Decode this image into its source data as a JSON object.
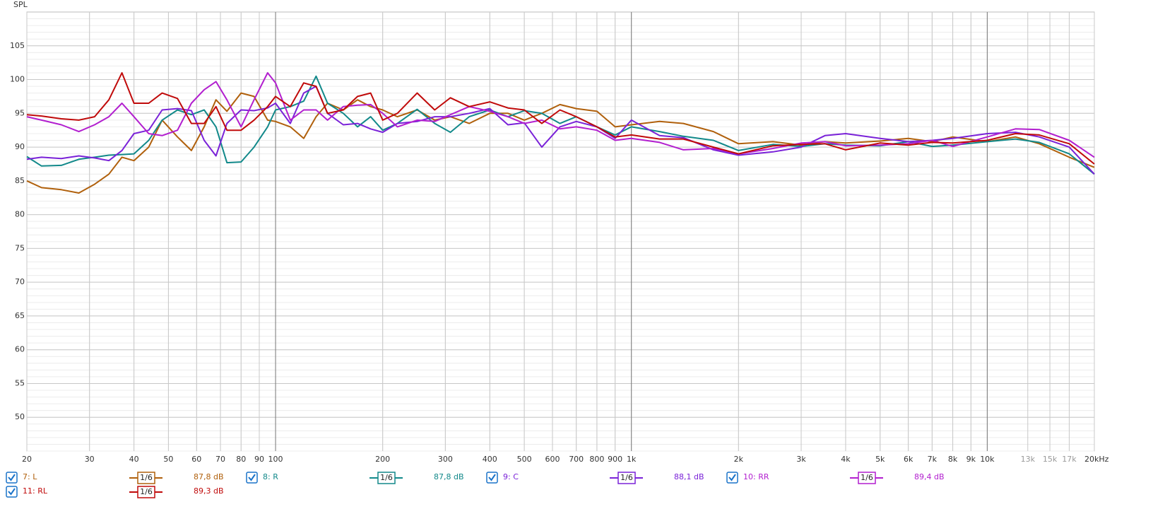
{
  "chart_data": {
    "type": "line",
    "y_label": "SPL",
    "xscale": "log",
    "grid": true,
    "xlim": [
      20,
      20000
    ],
    "ylim": [
      45,
      110
    ],
    "yticks": [
      50,
      55,
      60,
      65,
      70,
      75,
      80,
      85,
      90,
      95,
      100,
      105
    ],
    "xticks": [
      20,
      30,
      40,
      50,
      60,
      70,
      80,
      90,
      100,
      200,
      300,
      400,
      500,
      600,
      700,
      800,
      900,
      {
        "value": 1000,
        "label": "1k"
      },
      {
        "value": 2000,
        "label": "2k"
      },
      {
        "value": 3000,
        "label": "3k"
      },
      {
        "value": 4000,
        "label": "4k"
      },
      {
        "value": 5000,
        "label": "5k"
      },
      {
        "value": 6000,
        "label": "6k"
      },
      {
        "value": 7000,
        "label": "7k"
      },
      {
        "value": 8000,
        "label": "8k"
      },
      {
        "value": 9000,
        "label": "9k"
      },
      {
        "value": 10000,
        "label": "10k"
      },
      {
        "value": 13000,
        "label": "13k"
      },
      {
        "value": 15000,
        "label": "15k"
      },
      {
        "value": 17000,
        "label": "17k"
      },
      {
        "value": 20000,
        "label": "20kHz"
      }
    ],
    "x": [
      20,
      22,
      25,
      28,
      31,
      34,
      37,
      40,
      44,
      48,
      53,
      58,
      63,
      68,
      73,
      80,
      87,
      95,
      100,
      110,
      120,
      130,
      140,
      155,
      170,
      185,
      200,
      220,
      250,
      280,
      310,
      350,
      400,
      450,
      500,
      560,
      630,
      700,
      800,
      900,
      1000,
      1200,
      1400,
      1700,
      2000,
      2500,
      3000,
      3500,
      4000,
      5000,
      6000,
      7000,
      8000,
      10000,
      12000,
      14000,
      17000,
      20000
    ],
    "series": [
      {
        "name": "7: L",
        "color": "#b0600c",
        "smoothing": "1/6",
        "level": "87,8 dB",
        "values": [
          85,
          84,
          83.7,
          83.2,
          84.5,
          86,
          88.5,
          88,
          90,
          94,
          91.5,
          89.5,
          93,
          97,
          95.3,
          98,
          97.5,
          94,
          93.8,
          93,
          91.3,
          94.5,
          96.5,
          95.5,
          97,
          96,
          95.5,
          94.5,
          95.5,
          94,
          94.5,
          93.5,
          95,
          95,
          94,
          95,
          96.3,
          95.7,
          95.3,
          93,
          93.3,
          93.8,
          93.5,
          92.3,
          90.5,
          90.8,
          90.3,
          90.8,
          90.6,
          90.9,
          91.3,
          90.8,
          91.5,
          90.8,
          91.5,
          90.5,
          88.5,
          87
        ]
      },
      {
        "name": "8: R",
        "color": "#12898a",
        "smoothing": "1/6",
        "level": "87,8 dB",
        "values": [
          88.6,
          87.2,
          87.3,
          88.2,
          88.5,
          88.8,
          88.9,
          89,
          91,
          94,
          95.5,
          94.8,
          95.5,
          93,
          87.7,
          87.8,
          90,
          93,
          95.5,
          96,
          96.8,
          100.5,
          96.5,
          95,
          93,
          94.5,
          92.5,
          93.5,
          95.6,
          93.5,
          92.2,
          94.5,
          95.5,
          94.5,
          95.4,
          95,
          93.5,
          94.5,
          93,
          91.8,
          93,
          92.3,
          91.6,
          91,
          89.5,
          90.4,
          90.1,
          90.5,
          90.3,
          90.2,
          90.8,
          90.1,
          90.3,
          90.8,
          91.2,
          90.7,
          89,
          86
        ]
      },
      {
        "name": "9: C",
        "color": "#7a22d8",
        "smoothing": "1/6",
        "level": "88,1 dB",
        "values": [
          88.2,
          88.5,
          88.3,
          88.7,
          88.4,
          88,
          89.5,
          92,
          92.5,
          95.5,
          95.7,
          95.4,
          91,
          88.7,
          93.5,
          95.5,
          95.4,
          95.8,
          96.5,
          93.5,
          98,
          99,
          95,
          93.3,
          93.5,
          92.7,
          92.2,
          93.5,
          93.8,
          94.5,
          94.5,
          95,
          95.7,
          93.3,
          93.6,
          90,
          93,
          93.8,
          93,
          91.3,
          94,
          91.7,
          91.4,
          89.6,
          88.8,
          89.3,
          90,
          91.7,
          92,
          91.3,
          90.8,
          91,
          91.3,
          92,
          92.2,
          91.5,
          90,
          86
        ]
      },
      {
        "name": "10: RR",
        "color": "#b21fcf",
        "smoothing": "1/6",
        "level": "89,4 dB",
        "values": [
          94.5,
          94,
          93.3,
          92.3,
          93.3,
          94.5,
          96.5,
          94.5,
          92,
          91.7,
          92.5,
          96.5,
          98.5,
          99.7,
          97,
          93,
          97,
          101,
          99.5,
          94,
          95.5,
          95.5,
          94,
          96,
          96.2,
          96.3,
          95,
          93,
          94,
          93.8,
          94.8,
          96,
          95.3,
          94.5,
          93.5,
          94,
          92.7,
          93,
          92.5,
          91,
          91.3,
          90.7,
          89.6,
          89.8,
          89,
          89.8,
          90.6,
          90.8,
          90.2,
          90.3,
          90.5,
          91,
          90.1,
          91.5,
          92.7,
          92.6,
          91,
          88.5
        ]
      },
      {
        "name": "11: RL",
        "color": "#c00a0a",
        "smoothing": "1/6",
        "level": "89,3 dB",
        "values": [
          94.8,
          94.6,
          94.2,
          94,
          94.5,
          97,
          101,
          96.5,
          96.5,
          98,
          97.2,
          93.5,
          93.5,
          96,
          92.5,
          92.5,
          94,
          96,
          97.5,
          96,
          99.5,
          99,
          95,
          95.5,
          97.5,
          98,
          94,
          95,
          98,
          95.5,
          97.3,
          96,
          96.7,
          95.8,
          95.5,
          93.5,
          95.5,
          94.5,
          93,
          91.5,
          91.8,
          91.2,
          91.2,
          90,
          89,
          90.2,
          90.4,
          90.5,
          89.6,
          90.6,
          90.3,
          90.7,
          90.6,
          91,
          92,
          91.8,
          90.5,
          87.5
        ]
      }
    ]
  }
}
